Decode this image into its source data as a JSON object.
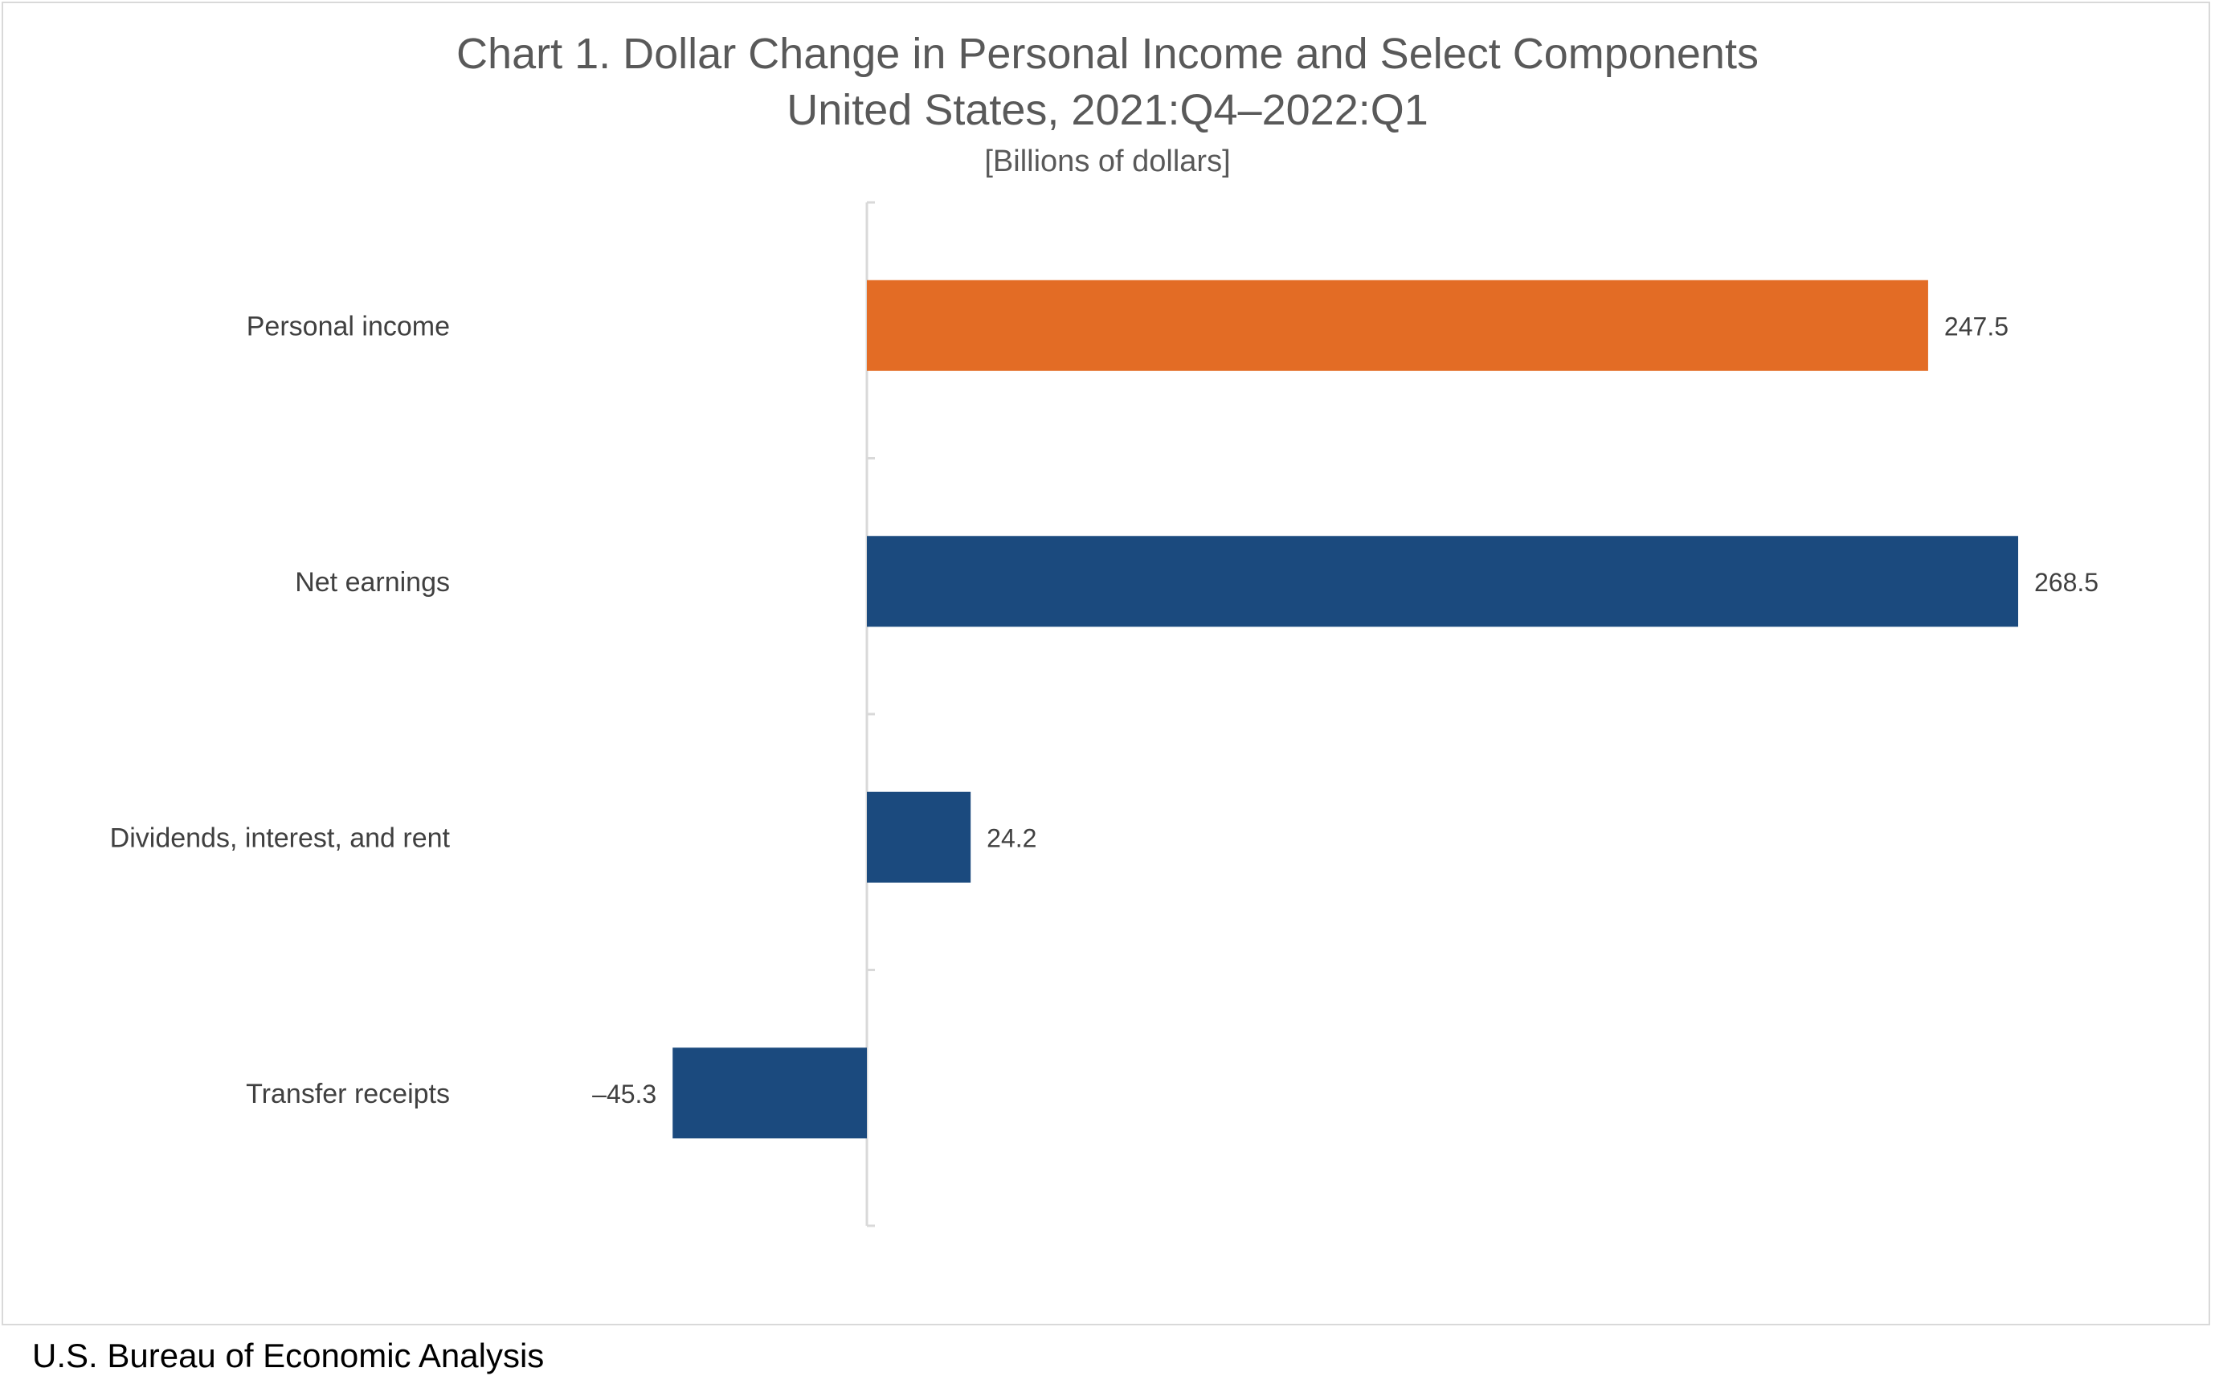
{
  "chart_data": {
    "type": "bar",
    "orientation": "horizontal",
    "title": "Chart 1. Dollar Change in Personal Income and Select Components",
    "subtitle": "United States, 2021:Q4–2022:Q1",
    "units": "[Billions of dollars]",
    "categories": [
      "Personal income",
      "Net earnings",
      "Dividends, interest, and rent",
      "Transfer receipts"
    ],
    "values": [
      247.5,
      268.5,
      24.2,
      -45.3
    ],
    "value_labels": [
      "247.5",
      "268.5",
      "24.2",
      "–45.3"
    ],
    "bar_colors": [
      "#E36C25",
      "#1B4A7E",
      "#1B4A7E",
      "#1B4A7E"
    ],
    "xlim": [
      -45.3,
      268.5
    ],
    "grid": false,
    "legend": "none"
  },
  "footer": {
    "source": "U.S. Bureau of Economic Analysis"
  },
  "colors": {
    "highlight": "#E36C25",
    "primary": "#1B4A7E",
    "axis": "#d9d9d9",
    "title_text": "#595959"
  }
}
